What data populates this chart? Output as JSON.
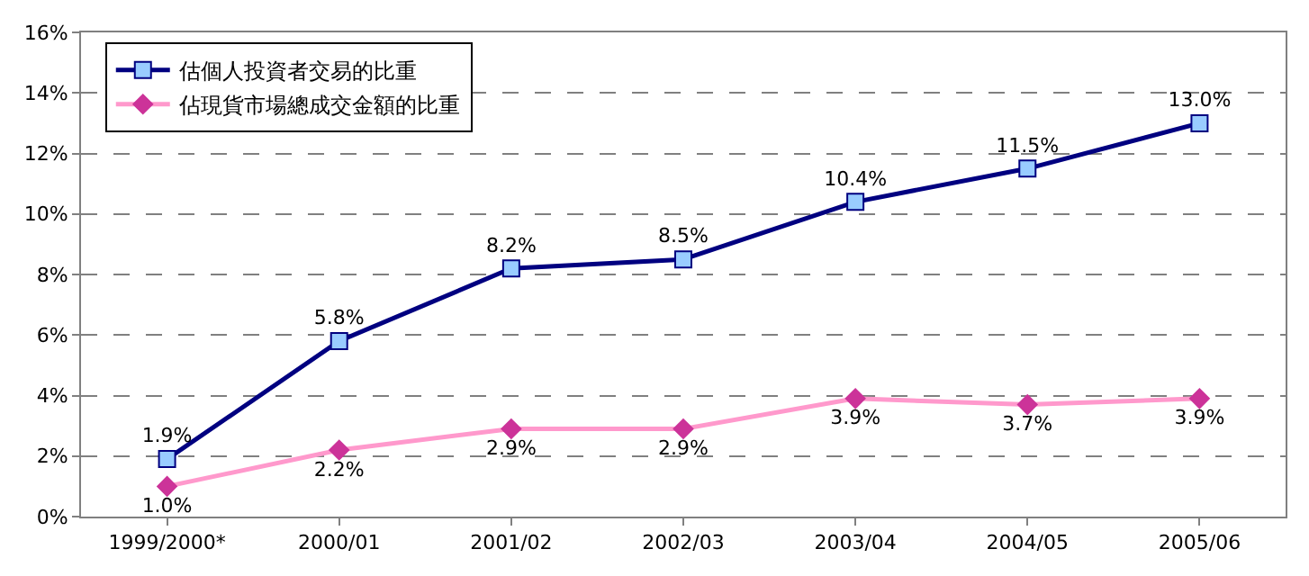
{
  "chart_data": {
    "type": "line",
    "categories": [
      "1999/2000*",
      "2000/01",
      "2001/02",
      "2002/03",
      "2003/04",
      "2004/05",
      "2005/06"
    ],
    "series": [
      {
        "name": "估個人投資者交易的比重",
        "color": "#000080",
        "marker": "square",
        "values": [
          1.9,
          5.8,
          8.2,
          8.5,
          10.4,
          11.5,
          13.0
        ],
        "value_labels": [
          "1.9%",
          "5.8%",
          "8.2%",
          "8.5%",
          "10.4%",
          "11.5%",
          "13.0%"
        ]
      },
      {
        "name": "佔現貨市場總成交金額的比重",
        "color": "#ff99cc",
        "marker": "diamond",
        "values": [
          1.0,
          2.2,
          2.9,
          2.9,
          3.9,
          3.7,
          3.9
        ],
        "value_labels": [
          "1.0%",
          "2.2%",
          "2.9%",
          "2.9%",
          "3.9%",
          "3.7%",
          "3.9%"
        ]
      }
    ],
    "ylim": [
      0,
      16
    ],
    "yticks": [
      {
        "value": 0,
        "label": "0%"
      },
      {
        "value": 2,
        "label": "2%"
      },
      {
        "value": 4,
        "label": "4%"
      },
      {
        "value": 6,
        "label": "6%"
      },
      {
        "value": 8,
        "label": "8%"
      },
      {
        "value": 10,
        "label": "10%"
      },
      {
        "value": 12,
        "label": "12%"
      },
      {
        "value": 14,
        "label": "14%"
      },
      {
        "value": 16,
        "label": "16%"
      }
    ],
    "grid": "y",
    "legend": "top left",
    "line_style": "solid"
  }
}
